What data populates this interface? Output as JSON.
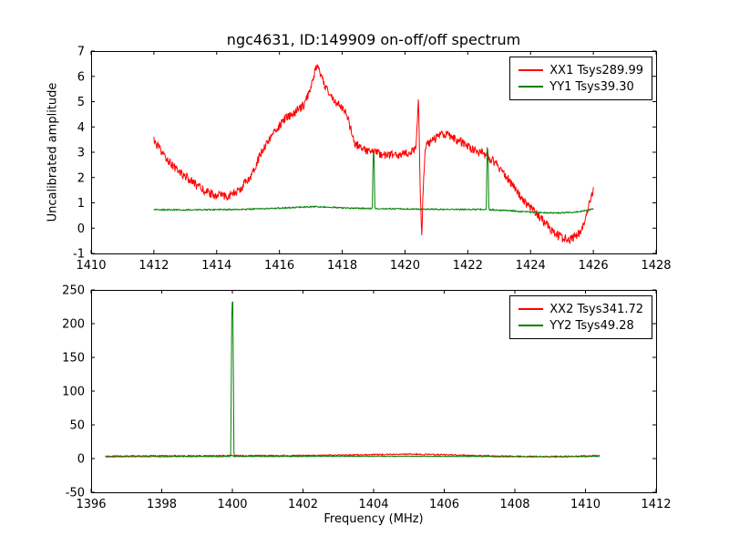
{
  "figure": {
    "background": "#ffffff"
  },
  "chart_data": [
    {
      "type": "line",
      "title": "ngc4631, ID:149909 on-off/off spectrum",
      "xlabel": "",
      "ylabel": "Uncalibrated amplitude",
      "xlim": [
        1410,
        1428
      ],
      "ylim": [
        -1,
        7
      ],
      "xticks": [
        1410,
        1412,
        1414,
        1416,
        1418,
        1420,
        1422,
        1424,
        1426,
        1428
      ],
      "yticks": [
        -1,
        0,
        1,
        2,
        3,
        4,
        5,
        6,
        7
      ],
      "grid": false,
      "legend_position": "upper right",
      "series": [
        {
          "name": "XX1 Tsys289.99",
          "color": "#ff0000",
          "noise": 0.17,
          "anchors": [
            [
              1412.0,
              3.45
            ],
            [
              1412.3,
              2.9
            ],
            [
              1412.7,
              2.35
            ],
            [
              1413.1,
              1.95
            ],
            [
              1413.5,
              1.55
            ],
            [
              1413.9,
              1.32
            ],
            [
              1414.3,
              1.25
            ],
            [
              1414.7,
              1.45
            ],
            [
              1415.1,
              2.1
            ],
            [
              1415.5,
              3.2
            ],
            [
              1415.9,
              3.9
            ],
            [
              1416.2,
              4.35
            ],
            [
              1416.5,
              4.55
            ],
            [
              1416.8,
              4.9
            ],
            [
              1417.0,
              5.6
            ],
            [
              1417.1,
              6.1
            ],
            [
              1417.2,
              6.45
            ],
            [
              1417.3,
              6.05
            ],
            [
              1417.5,
              5.5
            ],
            [
              1417.7,
              5.15
            ],
            [
              1417.9,
              4.85
            ],
            [
              1418.1,
              4.65
            ],
            [
              1418.25,
              4.0
            ],
            [
              1418.4,
              3.35
            ],
            [
              1418.7,
              3.1
            ],
            [
              1419.0,
              3.0
            ],
            [
              1419.4,
              2.9
            ],
            [
              1419.8,
              2.85
            ],
            [
              1420.1,
              3.0
            ],
            [
              1420.35,
              3.1
            ],
            [
              1420.43,
              5.2
            ],
            [
              1420.48,
              1.8
            ],
            [
              1420.53,
              -0.45
            ],
            [
              1420.58,
              1.6
            ],
            [
              1420.65,
              3.25
            ],
            [
              1420.9,
              3.5
            ],
            [
              1421.2,
              3.75
            ],
            [
              1421.5,
              3.6
            ],
            [
              1421.8,
              3.4
            ],
            [
              1422.1,
              3.15
            ],
            [
              1422.5,
              2.95
            ],
            [
              1422.9,
              2.55
            ],
            [
              1423.2,
              2.1
            ],
            [
              1423.5,
              1.55
            ],
            [
              1423.8,
              1.05
            ],
            [
              1424.1,
              0.7
            ],
            [
              1424.4,
              0.3
            ],
            [
              1424.7,
              -0.1
            ],
            [
              1425.0,
              -0.4
            ],
            [
              1425.3,
              -0.45
            ],
            [
              1425.6,
              -0.15
            ],
            [
              1425.8,
              0.6
            ],
            [
              1426.0,
              1.55
            ]
          ]
        },
        {
          "name": "YY1 Tsys39.30",
          "color": "#008000",
          "noise": 0.025,
          "anchors": [
            [
              1412.0,
              0.73
            ],
            [
              1413.0,
              0.72
            ],
            [
              1414.0,
              0.73
            ],
            [
              1415.0,
              0.75
            ],
            [
              1416.0,
              0.79
            ],
            [
              1416.7,
              0.83
            ],
            [
              1417.2,
              0.85
            ],
            [
              1417.7,
              0.82
            ],
            [
              1418.2,
              0.79
            ],
            [
              1418.96,
              0.78
            ],
            [
              1418.985,
              3.0
            ],
            [
              1419.015,
              3.0
            ],
            [
              1419.04,
              0.77
            ],
            [
              1419.8,
              0.76
            ],
            [
              1420.6,
              0.75
            ],
            [
              1421.4,
              0.74
            ],
            [
              1422.2,
              0.74
            ],
            [
              1422.59,
              0.74
            ],
            [
              1422.615,
              3.15
            ],
            [
              1422.645,
              3.15
            ],
            [
              1422.67,
              0.73
            ],
            [
              1423.2,
              0.7
            ],
            [
              1423.8,
              0.65
            ],
            [
              1424.4,
              0.61
            ],
            [
              1424.9,
              0.6
            ],
            [
              1425.4,
              0.63
            ],
            [
              1425.8,
              0.7
            ],
            [
              1426.0,
              0.77
            ]
          ]
        }
      ]
    },
    {
      "type": "line",
      "title": "",
      "xlabel": "Frequency (MHz)",
      "ylabel": "",
      "xlim": [
        1396,
        1412
      ],
      "ylim": [
        -50,
        250
      ],
      "xticks": [
        1396,
        1398,
        1400,
        1402,
        1404,
        1406,
        1408,
        1410,
        1412
      ],
      "yticks": [
        -50,
        0,
        50,
        100,
        150,
        200,
        250
      ],
      "grid": false,
      "legend_position": "upper right",
      "series": [
        {
          "name": "XX2 Tsys341.72",
          "color": "#ff0000",
          "noise": 0.9,
          "anchors": [
            [
              1396.4,
              3.4
            ],
            [
              1397.2,
              3.8
            ],
            [
              1398.0,
              4.0
            ],
            [
              1399.0,
              4.1
            ],
            [
              1400.0,
              4.3
            ],
            [
              1401.0,
              4.4
            ],
            [
              1402.0,
              4.6
            ],
            [
              1403.0,
              5.0
            ],
            [
              1404.0,
              5.8
            ],
            [
              1404.7,
              6.5
            ],
            [
              1405.3,
              6.4
            ],
            [
              1406.0,
              5.6
            ],
            [
              1407.0,
              4.4
            ],
            [
              1408.0,
              3.3
            ],
            [
              1408.8,
              2.9
            ],
            [
              1409.5,
              3.2
            ],
            [
              1410.0,
              3.9
            ],
            [
              1410.4,
              4.3
            ]
          ]
        },
        {
          "name": "YY2 Tsys49.28",
          "color": "#008000",
          "noise": 0.6,
          "anchors": [
            [
              1396.4,
              2.7
            ],
            [
              1397.5,
              2.9
            ],
            [
              1398.5,
              3.0
            ],
            [
              1399.5,
              3.0
            ],
            [
              1399.955,
              3.0
            ],
            [
              1399.985,
              232
            ],
            [
              1400.015,
              232
            ],
            [
              1400.045,
              3.1
            ],
            [
              1401.0,
              3.2
            ],
            [
              1402.0,
              3.2
            ],
            [
              1403.0,
              3.4
            ],
            [
              1404.0,
              3.5
            ],
            [
              1405.0,
              3.5
            ],
            [
              1406.0,
              3.3
            ],
            [
              1407.0,
              3.1
            ],
            [
              1408.0,
              2.8
            ],
            [
              1409.0,
              2.8
            ],
            [
              1410.0,
              3.0
            ],
            [
              1410.4,
              3.1
            ]
          ]
        }
      ]
    }
  ]
}
